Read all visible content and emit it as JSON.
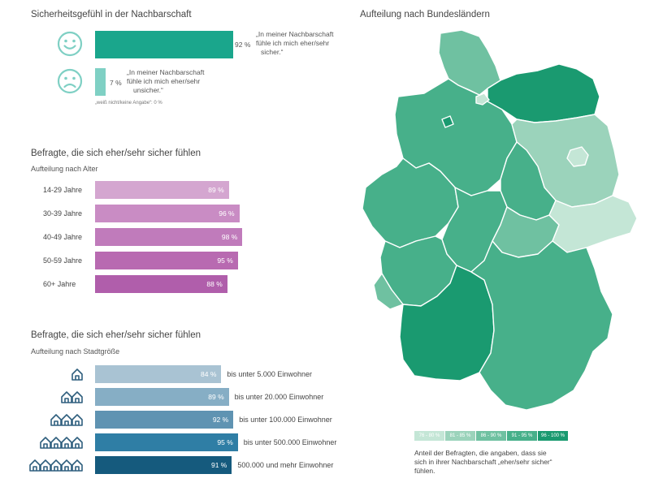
{
  "title_left": "Sicherheitsgefühl in der Nachbarschaft",
  "title_right": "Aufteilung nach Bundesländern",
  "feeling": {
    "safe": {
      "value": 92,
      "label": "92 %",
      "text_l1": "„In meiner Nachbarschaft",
      "text_l2": "fühle ich mich eher/sehr",
      "text_l3": "sicher.“",
      "icon": "happy-face-icon"
    },
    "unsafe": {
      "value": 7,
      "label": "7 %",
      "text_l1": "„In meiner Nachbarschaft",
      "text_l2": "fühle ich mich eher/sehr",
      "text_l3": "unsicher.“",
      "icon": "sad-face-icon"
    },
    "note": "„weiß nicht/keine Angabe“: 0 %",
    "colors": {
      "safe": "#1aa68c",
      "unsafe": "#7fd0c4",
      "face": "#7fd0c4"
    }
  },
  "age": {
    "title": "Befragte, die sich eher/sehr sicher fühlen",
    "subtitle": "Aufteilung nach Alter",
    "colors": [
      "#d4a6d0",
      "#c98cc4",
      "#c07bbb",
      "#b86ab1",
      "#b05eab"
    ]
  },
  "size": {
    "title": "Befragte, die sich eher/sehr sicher fühlen",
    "subtitle": "Aufteilung nach Stadtgröße",
    "colors": [
      "#a9c3d3",
      "#86aec5",
      "#5f93b2",
      "#2f7ea5",
      "#155a7d"
    ]
  },
  "map": {
    "legend": [
      "76 - 80 %",
      "81 - 85 %",
      "86 - 90 %",
      "91 - 95 %",
      "96 - 100 %"
    ],
    "legend_colors": [
      "#c4e6d6",
      "#9bd3bb",
      "#6fc1a1",
      "#47b08a",
      "#1a9a70"
    ],
    "caption_l1": "Anteil der Befragten, die angaben, dass sie",
    "caption_l2": "sich in ihrer Nachbarschaft „eher/sehr sicher“",
    "caption_l3": "fühlen."
  },
  "chart_data": [
    {
      "type": "bar",
      "title": "Sicherheitsgefühl in der Nachbarschaft",
      "categories": [
        "„In meiner Nachbarschaft fühle ich mich eher/sehr sicher.“",
        "„In meiner Nachbarschaft fühle ich mich eher/sehr unsicher.“"
      ],
      "values": [
        92,
        7
      ],
      "ylim": [
        0,
        100
      ]
    },
    {
      "type": "bar",
      "title": "Befragte, die sich eher/sehr sicher fühlen",
      "subtitle": "Aufteilung nach Alter",
      "categories": [
        "14-29 Jahre",
        "30-39 Jahre",
        "40-49 Jahre",
        "50-59 Jahre",
        "60+ Jahre"
      ],
      "values": [
        89,
        96,
        98,
        95,
        88
      ],
      "ylim": [
        0,
        100
      ]
    },
    {
      "type": "bar",
      "title": "Befragte, die sich eher/sehr sicher fühlen",
      "subtitle": "Aufteilung nach Stadtgröße",
      "categories": [
        "bis unter 5.000 Einwohner",
        "bis unter 20.000 Einwohner",
        "bis unter 100.000 Einwohner",
        "bis unter 500.000 Einwohner",
        "500.000 und mehr Einwohner"
      ],
      "values": [
        84,
        89,
        92,
        95,
        91
      ],
      "ylim": [
        0,
        100
      ]
    }
  ]
}
